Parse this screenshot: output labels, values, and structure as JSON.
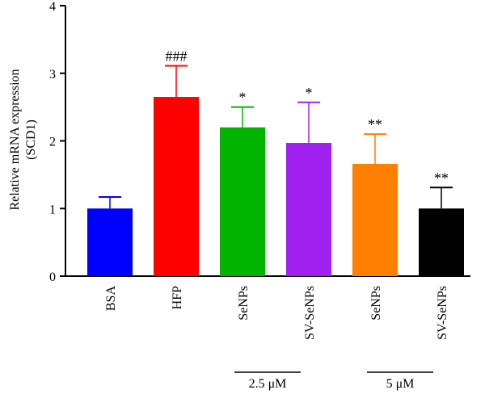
{
  "chart_data": {
    "type": "bar",
    "title": "",
    "ylabel_line1": "Relative mRNA expression",
    "ylabel_line2": "(SCD1)",
    "xlabel": "",
    "ylim": [
      0,
      4
    ],
    "yticks": [
      "0",
      "1",
      "2",
      "3",
      "4"
    ],
    "grid": false,
    "categories": [
      "BSA",
      "HFP",
      "SeNPs",
      "SV-SeNPs",
      "SeNPs",
      "SV-SeNPs"
    ],
    "values": [
      1.0,
      2.65,
      2.2,
      1.97,
      1.66,
      1.0
    ],
    "error_plus": [
      0.17,
      0.46,
      0.3,
      0.6,
      0.44,
      0.31
    ],
    "significance": [
      "",
      "###",
      "*",
      "*",
      "**",
      "**"
    ],
    "colors": [
      "#0000FF",
      "#FF0000",
      "#00B400",
      "#A020F0",
      "#FF7F00",
      "#000000"
    ],
    "groups": [
      {
        "label": "2.5 μM",
        "categories": [
          2,
          3
        ]
      },
      {
        "label": "5 μM",
        "categories": [
          4,
          5
        ]
      }
    ]
  }
}
